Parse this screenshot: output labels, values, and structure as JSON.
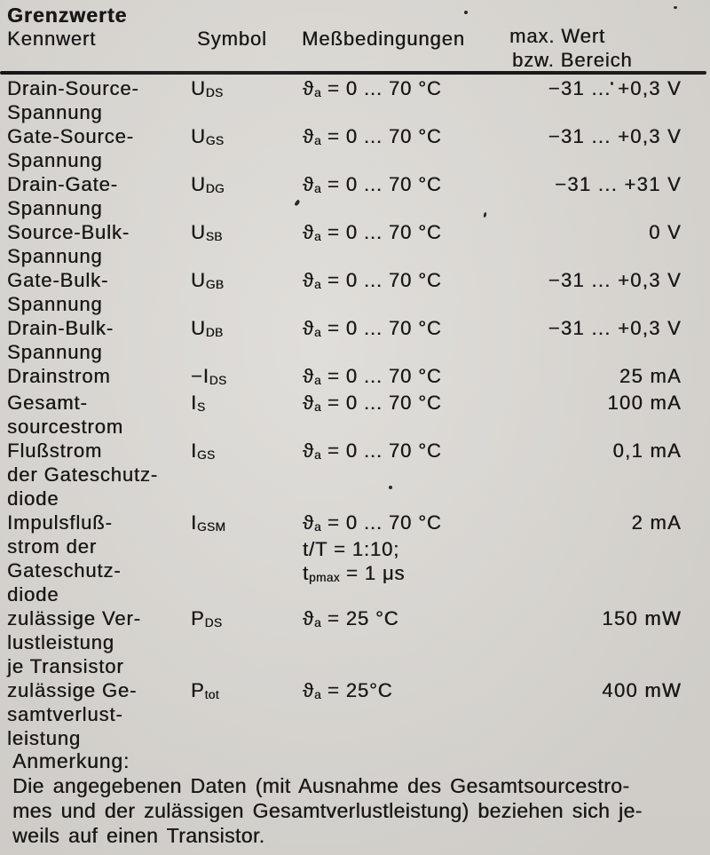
{
  "page": {
    "background_color": "#d8d5d0",
    "text_color": "#1a1817",
    "rule_color": "#1b1b1b"
  },
  "title": "Grenzwerte",
  "table": {
    "headers": {
      "kennwert": "Kennwert",
      "symbol": "Symbol",
      "messbedingungen": "Meßbedingungen",
      "max_wert_line1": "max. Wert",
      "max_wert_line2": "bzw. Bereich"
    },
    "rows": [
      {
        "kennwert_lines": [
          "Drain-Source-",
          "Spannung"
        ],
        "symbol": {
          "prefix": "",
          "base": "U",
          "sub": "DS"
        },
        "conditions": [
          {
            "main": "ϑ",
            "sub": "a",
            "rest": "= 0 ... 70 °C"
          }
        ],
        "value": "−31 ... +0,3 V"
      },
      {
        "kennwert_lines": [
          "Gate-Source-",
          "Spannung"
        ],
        "symbol": {
          "prefix": "",
          "base": "U",
          "sub": "GS"
        },
        "conditions": [
          {
            "main": "ϑ",
            "sub": "a",
            "rest": "= 0 ... 70 °C"
          }
        ],
        "value": "−31 ... +0,3 V"
      },
      {
        "kennwert_lines": [
          "Drain-Gate-",
          "Spannung"
        ],
        "symbol": {
          "prefix": "",
          "base": "U",
          "sub": "DG"
        },
        "conditions": [
          {
            "main": "ϑ",
            "sub": "a",
            "rest": "= 0 ... 70 °C"
          }
        ],
        "value": "−31 ... +31 V"
      },
      {
        "kennwert_lines": [
          "Source-Bulk-",
          "Spannung"
        ],
        "symbol": {
          "prefix": "",
          "base": "U",
          "sub": "SB"
        },
        "conditions": [
          {
            "main": "ϑ",
            "sub": "a",
            "rest": "= 0 ... 70 °C"
          }
        ],
        "value": "0 V"
      },
      {
        "kennwert_lines": [
          "Gate-Bulk-",
          "Spannung"
        ],
        "symbol": {
          "prefix": "",
          "base": "U",
          "sub": "GB"
        },
        "conditions": [
          {
            "main": "ϑ",
            "sub": "a",
            "rest": "= 0 ... 70 °C"
          }
        ],
        "value": "−31 ... +0,3 V"
      },
      {
        "kennwert_lines": [
          "Drain-Bulk-",
          "Spannung"
        ],
        "symbol": {
          "prefix": "",
          "base": "U",
          "sub": "DB"
        },
        "conditions": [
          {
            "main": "ϑ",
            "sub": "a",
            "rest": "= 0 ... 70 °C"
          }
        ],
        "value": "−31 ... +0,3 V"
      },
      {
        "kennwert_lines": [
          "Drainstrom"
        ],
        "symbol": {
          "prefix": "−",
          "base": "I",
          "sub": "DS"
        },
        "conditions": [
          {
            "main": "ϑ",
            "sub": "a",
            "rest": "= 0 ... 70 °C"
          }
        ],
        "value": "25 mA"
      },
      {
        "kennwert_lines": [
          "Gesamt-",
          "sourcestrom"
        ],
        "symbol": {
          "prefix": "",
          "base": "I",
          "sub": "S"
        },
        "conditions": [
          {
            "main": "ϑ",
            "sub": "a",
            "rest": "= 0 ... 70 °C"
          }
        ],
        "value": "100 mA"
      },
      {
        "kennwert_lines": [
          "Flußstrom",
          "der Gateschutz-",
          "diode"
        ],
        "symbol": {
          "prefix": "",
          "base": "I",
          "sub": "GS"
        },
        "conditions": [
          {
            "main": "ϑ",
            "sub": "a",
            "rest": "= 0 ... 70 °C"
          }
        ],
        "value": "0,1 mA"
      },
      {
        "kennwert_lines": [
          "Impulsfluß-",
          "strom der",
          "Gateschutz-",
          "diode"
        ],
        "symbol": {
          "prefix": "",
          "base": "I",
          "sub": "GSM"
        },
        "conditions": [
          {
            "main": "ϑ",
            "sub": "a",
            "rest": "= 0 ... 70 °C"
          },
          {
            "main": "t/T",
            "sub": "",
            "rest": "= 1:10;"
          },
          {
            "main": "t",
            "sub": "pmax",
            "rest": "= 1 μs"
          }
        ],
        "value": "2 mA"
      },
      {
        "kennwert_lines": [
          "zulässige Ver-",
          "lustleistung",
          "je Transistor"
        ],
        "symbol": {
          "prefix": "",
          "base": "P",
          "sub": "DS"
        },
        "conditions": [
          {
            "main": "ϑ",
            "sub": "a",
            "rest": "= 25 °C"
          }
        ],
        "value": "150 mW"
      },
      {
        "kennwert_lines": [
          "zulässige Ge-",
          "samtverlust-",
          "leistung"
        ],
        "symbol": {
          "prefix": "",
          "base": "P",
          "sub": "tot"
        },
        "conditions": [
          {
            "main": "ϑ",
            "sub": "a",
            "rest": "= 25°C"
          }
        ],
        "value": "400 mW"
      }
    ]
  },
  "note": {
    "heading": "Anmerkung:",
    "lines": [
      "Die angegebenen Daten (mit Ausnahme des Gesamtsourcestro-",
      "mes und der zulässigen Gesamtverlustleistung) beziehen sich je-",
      "weils auf einen Transistor."
    ]
  }
}
